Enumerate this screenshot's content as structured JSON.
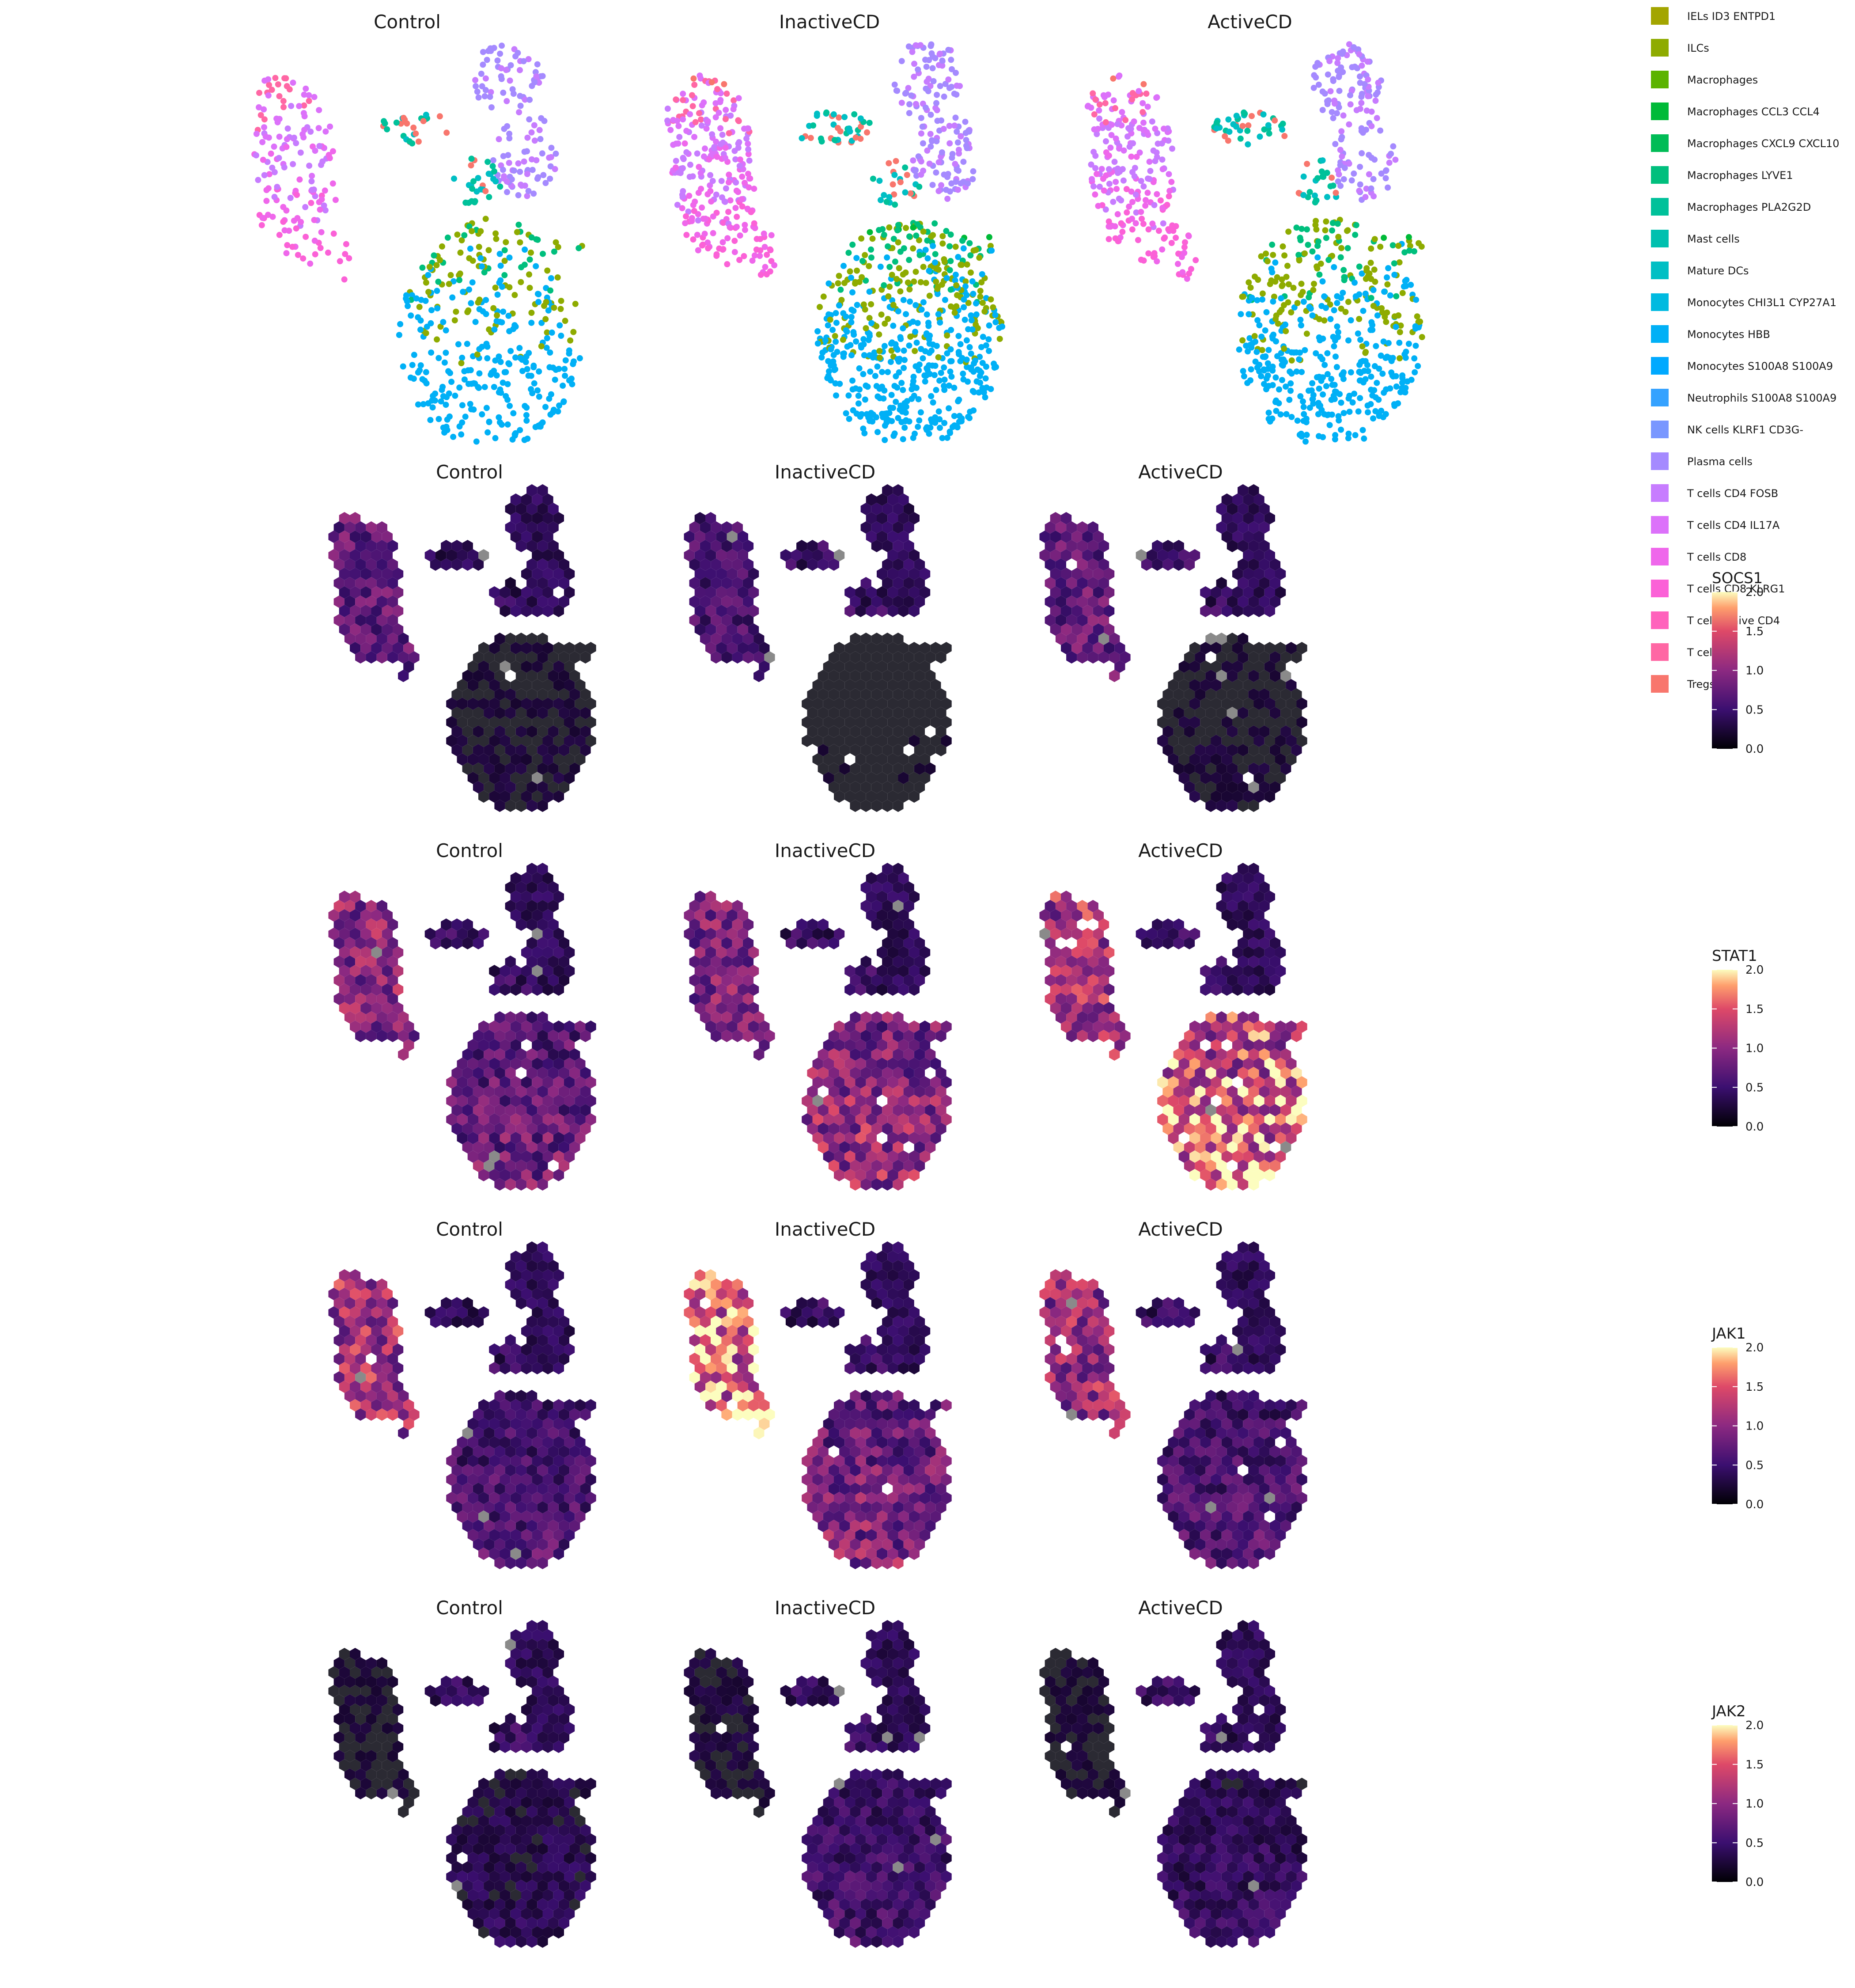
{
  "chart_data": [
    {
      "type": "scatter",
      "panels": [
        {
          "title": "Control"
        },
        {
          "title": "InactiveCD"
        },
        {
          "title": "ActiveCD"
        }
      ],
      "legend": {
        "placement": "right",
        "items": [
          {
            "label": "IELs ID3 ENTPD1",
            "color": "#A3A500"
          },
          {
            "label": "ILCs",
            "color": "#8EAB00"
          },
          {
            "label": "Macrophages",
            "color": "#5BB300"
          },
          {
            "label": "Macrophages CCL3 CCL4",
            "color": "#00BA38"
          },
          {
            "label": "Macrophages CXCL9 CXCL10",
            "color": "#00BC56"
          },
          {
            "label": "Macrophages LYVE1",
            "color": "#00BF7D"
          },
          {
            "label": "Macrophages PLA2G2D",
            "color": "#00C19A"
          },
          {
            "label": "Mast cells",
            "color": "#00C0AF"
          },
          {
            "label": "Mature DCs",
            "color": "#00BFC4"
          },
          {
            "label": "Monocytes CHI3L1 CYP27A1",
            "color": "#00BAE0"
          },
          {
            "label": "Monocytes HBB",
            "color": "#00B0F6"
          },
          {
            "label": "Monocytes S100A8 S100A9",
            "color": "#00A9FF"
          },
          {
            "label": "Neutrophils S100A8 S100A9",
            "color": "#35A2FF"
          },
          {
            "label": "NK cells KLRF1 CD3G-",
            "color": "#7997FF"
          },
          {
            "label": "Plasma cells",
            "color": "#A58AFF"
          },
          {
            "label": "T cells CD4 FOSB",
            "color": "#C77CFF"
          },
          {
            "label": "T cells CD4 IL17A",
            "color": "#DC71FA"
          },
          {
            "label": "T cells CD8",
            "color": "#EF67EB"
          },
          {
            "label": "T cells CD8 KLRG1",
            "color": "#FB61D7"
          },
          {
            "label": "T cells Naive CD4",
            "color": "#FF62BC"
          },
          {
            "label": "T cells",
            "color": "#FF67A4"
          },
          {
            "label": "Tregs",
            "color": "#F8766D"
          }
        ]
      }
    },
    {
      "type": "heatmap",
      "gene": "SOCS1",
      "panels": [
        {
          "title": "Control"
        },
        {
          "title": "InactiveCD"
        },
        {
          "title": "ActiveCD"
        }
      ],
      "colorbar": {
        "title": "SOCS1",
        "range": [
          0,
          2
        ],
        "ticks": [
          "0.0",
          "0.5",
          "1.0",
          "1.5",
          "2.0"
        ]
      },
      "level": [
        0.45,
        0.35,
        0.45
      ],
      "myeloid_level": [
        0.12,
        0.08,
        0.12
      ]
    },
    {
      "type": "heatmap",
      "gene": "STAT1",
      "panels": [
        {
          "title": "Control"
        },
        {
          "title": "InactiveCD"
        },
        {
          "title": "ActiveCD"
        }
      ],
      "colorbar": {
        "title": "STAT1",
        "range": [
          0,
          2
        ],
        "ticks": [
          "0.0",
          "0.5",
          "1.0",
          "1.5",
          "2.0"
        ]
      },
      "level": [
        0.6,
        0.55,
        0.7
      ],
      "myeloid_level": [
        0.45,
        0.6,
        0.9
      ]
    },
    {
      "type": "heatmap",
      "gene": "JAK1",
      "panels": [
        {
          "title": "Control"
        },
        {
          "title": "InactiveCD"
        },
        {
          "title": "ActiveCD"
        }
      ],
      "colorbar": {
        "title": "JAK1",
        "range": [
          0,
          2
        ],
        "ticks": [
          "0.0",
          "0.5",
          "1.0",
          "1.5",
          "2.0"
        ]
      },
      "level": [
        0.7,
        0.95,
        0.65
      ],
      "myeloid_level": [
        0.35,
        0.5,
        0.35
      ]
    },
    {
      "type": "heatmap",
      "gene": "JAK2",
      "panels": [
        {
          "title": "Control"
        },
        {
          "title": "InactiveCD"
        },
        {
          "title": "ActiveCD"
        }
      ],
      "colorbar": {
        "title": "JAK2",
        "range": [
          0,
          2
        ],
        "ticks": [
          "0.0",
          "0.5",
          "1.0",
          "1.5",
          "2.0"
        ]
      },
      "level": [
        0.12,
        0.15,
        0.12
      ],
      "myeloid_level": [
        0.2,
        0.3,
        0.25
      ]
    }
  ]
}
